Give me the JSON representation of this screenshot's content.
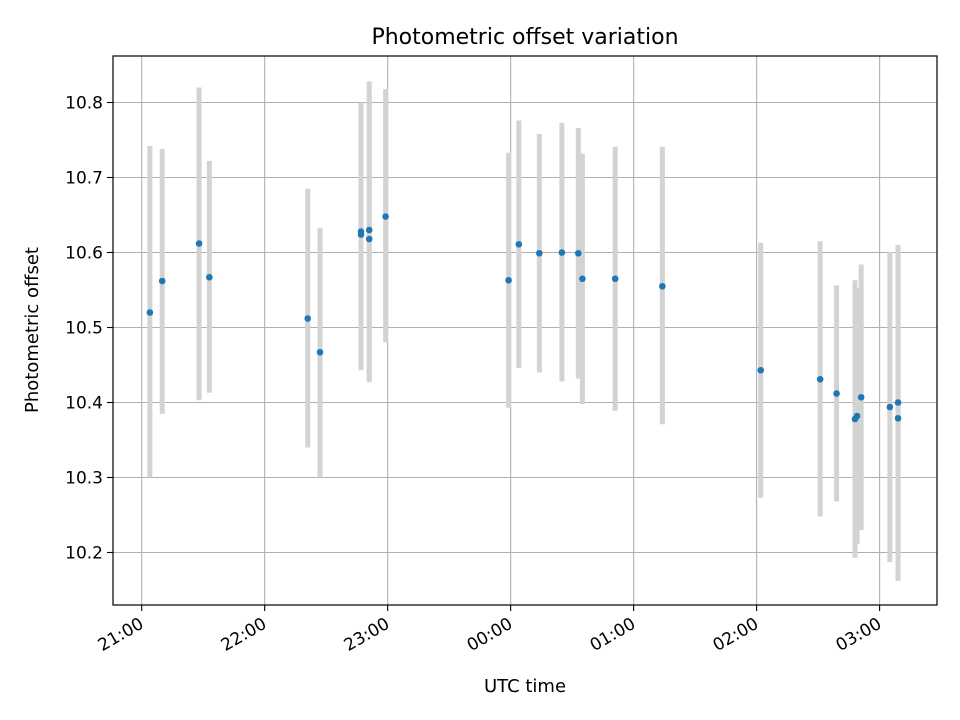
{
  "chart_data": {
    "type": "scatter",
    "title": "Photometric offset variation",
    "xlabel": "UTC time",
    "ylabel": "Photometric offset",
    "x_ticks": [
      "21:00",
      "22:00",
      "23:00",
      "00:00",
      "01:00",
      "02:00",
      "03:00"
    ],
    "y_ticks": [
      "10.2",
      "10.3",
      "10.4",
      "10.5",
      "10.6",
      "10.7",
      "10.8"
    ],
    "xlim": [
      "20:46",
      "03:28"
    ],
    "ylim": [
      10.13,
      10.862
    ],
    "grid": true,
    "colors": {
      "points": "#1f77b4",
      "errorbars": "#d3d3d3",
      "grid": "#b0b0b0"
    },
    "points": [
      {
        "t": "21:04",
        "y": 10.52,
        "lo": 10.3,
        "hi": 10.742
      },
      {
        "t": "21:10",
        "y": 10.562,
        "lo": 10.385,
        "hi": 10.738
      },
      {
        "t": "21:28",
        "y": 10.612,
        "lo": 10.403,
        "hi": 10.82
      },
      {
        "t": "21:33",
        "y": 10.567,
        "lo": 10.413,
        "hi": 10.722
      },
      {
        "t": "22:21",
        "y": 10.512,
        "lo": 10.34,
        "hi": 10.685
      },
      {
        "t": "22:27",
        "y": 10.467,
        "lo": 10.3,
        "hi": 10.633
      },
      {
        "t": "22:47",
        "y": 10.628,
        "lo": 10.443,
        "hi": 10.8
      },
      {
        "t": "22:47",
        "y": 10.624,
        "lo": 10.457,
        "hi": 10.792
      },
      {
        "t": "22:51",
        "y": 10.63,
        "lo": 10.43,
        "hi": 10.828
      },
      {
        "t": "22:51",
        "y": 10.618,
        "lo": 10.427,
        "hi": 10.81
      },
      {
        "t": "22:59",
        "y": 10.648,
        "lo": 10.48,
        "hi": 10.818
      },
      {
        "t": "23:59",
        "y": 10.563,
        "lo": 10.393,
        "hi": 10.733
      },
      {
        "t": "00:04",
        "y": 10.611,
        "lo": 10.446,
        "hi": 10.776
      },
      {
        "t": "00:14",
        "y": 10.599,
        "lo": 10.44,
        "hi": 10.758
      },
      {
        "t": "00:25",
        "y": 10.6,
        "lo": 10.428,
        "hi": 10.773
      },
      {
        "t": "00:33",
        "y": 10.599,
        "lo": 10.432,
        "hi": 10.766
      },
      {
        "t": "00:35",
        "y": 10.565,
        "lo": 10.398,
        "hi": 10.732
      },
      {
        "t": "00:51",
        "y": 10.565,
        "lo": 10.389,
        "hi": 10.741
      },
      {
        "t": "01:14",
        "y": 10.555,
        "lo": 10.371,
        "hi": 10.741
      },
      {
        "t": "02:02",
        "y": 10.443,
        "lo": 10.273,
        "hi": 10.613
      },
      {
        "t": "02:31",
        "y": 10.431,
        "lo": 10.248,
        "hi": 10.615
      },
      {
        "t": "02:39",
        "y": 10.412,
        "lo": 10.268,
        "hi": 10.556
      },
      {
        "t": "02:48",
        "y": 10.378,
        "lo": 10.193,
        "hi": 10.563
      },
      {
        "t": "02:49",
        "y": 10.382,
        "lo": 10.211,
        "hi": 10.553
      },
      {
        "t": "02:51",
        "y": 10.407,
        "lo": 10.23,
        "hi": 10.584
      },
      {
        "t": "03:05",
        "y": 10.394,
        "lo": 10.187,
        "hi": 10.601
      },
      {
        "t": "03:09",
        "y": 10.4,
        "lo": 10.202,
        "hi": 10.598
      },
      {
        "t": "03:09",
        "y": 10.379,
        "lo": 10.162,
        "hi": 10.61
      }
    ]
  }
}
